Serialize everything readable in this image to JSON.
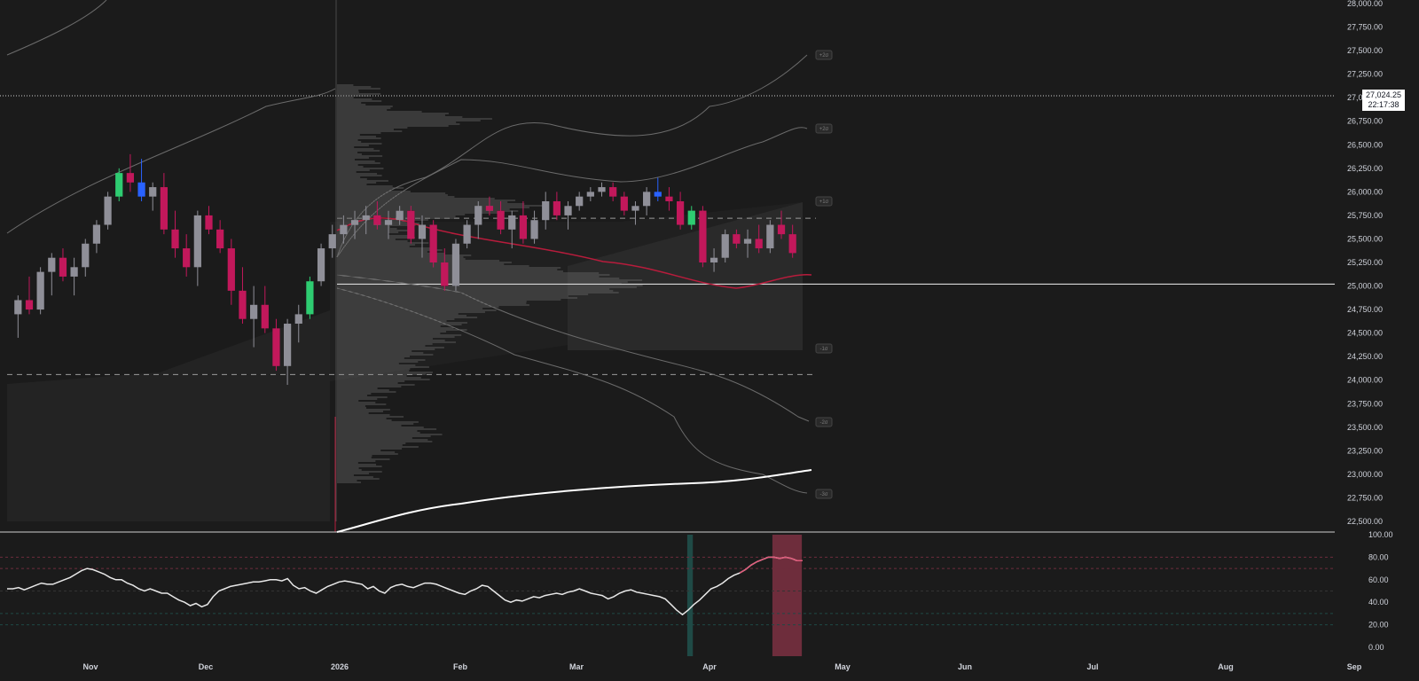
{
  "chart_data": [
    {
      "type": "candlestick",
      "title": "",
      "last_price": "27,024.25",
      "countdown": "22:17:38",
      "y_ticks": [
        "28,000.00",
        "27,750.00",
        "27,500.00",
        "27,250.00",
        "27,000.00",
        "26,750.00",
        "26,500.00",
        "26,250.00",
        "26,000.00",
        "25,750.00",
        "25,500.00",
        "25,250.00",
        "25,000.00",
        "24,750.00",
        "24,500.00",
        "24,250.00",
        "24,000.00",
        "23,750.00",
        "23,500.00",
        "23,250.00",
        "23,000.00",
        "22,750.00",
        "22,500.00"
      ],
      "ylim": [
        22500,
        28000
      ],
      "x_ticks": [
        "Nov",
        "Dec",
        "2026",
        "Feb",
        "Mar",
        "Apr",
        "May",
        "Jun",
        "Jul",
        "Aug",
        "Sep"
      ],
      "band_labels": [
        "+2σ",
        "+1σ",
        "-1σ",
        "-2σ",
        "-3σ"
      ],
      "horizontal_levels": [
        25020,
        25720,
        24060
      ],
      "colors": {
        "up": "#8f8f98",
        "down": "#c2185b",
        "highlight_up": "#2ecc71",
        "highlight_down": "#2962ff",
        "ma": "#b71c3c",
        "long_ma": "#ffffff",
        "volume_profile": "#9e9e9e"
      },
      "candles_ohlc": [
        [
          24700,
          24900,
          24450,
          24850
        ],
        [
          24850,
          25100,
          24700,
          24750
        ],
        [
          24750,
          25200,
          24700,
          25150
        ],
        [
          25150,
          25350,
          24900,
          25300
        ],
        [
          25300,
          25400,
          25050,
          25100
        ],
        [
          25100,
          25300,
          24900,
          25200
        ],
        [
          25200,
          25500,
          25100,
          25450
        ],
        [
          25450,
          25700,
          25350,
          25650
        ],
        [
          25650,
          26000,
          25600,
          25950
        ],
        [
          25950,
          26250,
          25900,
          26200
        ],
        [
          26200,
          26400,
          26000,
          26100
        ],
        [
          26100,
          26350,
          25900,
          25950
        ],
        [
          25950,
          26100,
          25800,
          26050
        ],
        [
          26050,
          26200,
          25550,
          25600
        ],
        [
          25600,
          25800,
          25300,
          25400
        ],
        [
          25400,
          25550,
          25100,
          25200
        ],
        [
          25200,
          25800,
          25000,
          25750
        ],
        [
          25750,
          25850,
          25550,
          25600
        ],
        [
          25600,
          25700,
          25350,
          25400
        ],
        [
          25400,
          25500,
          24800,
          24950
        ],
        [
          24950,
          25200,
          24600,
          24650
        ],
        [
          24650,
          25000,
          24350,
          24800
        ],
        [
          24800,
          25000,
          24500,
          24550
        ],
        [
          24550,
          24650,
          24100,
          24150
        ],
        [
          24150,
          24650,
          23950,
          24600
        ],
        [
          24600,
          24800,
          24400,
          24700
        ],
        [
          24700,
          25100,
          24650,
          25050
        ],
        [
          25050,
          25450,
          25000,
          25400
        ],
        [
          25400,
          25650,
          25300,
          25550
        ],
        [
          25550,
          25750,
          25450,
          25650
        ],
        [
          25650,
          25800,
          25500,
          25700
        ],
        [
          25700,
          25850,
          25550,
          25750
        ],
        [
          25750,
          25900,
          25600,
          25650
        ],
        [
          25650,
          25800,
          25500,
          25700
        ],
        [
          25700,
          25850,
          25650,
          25800
        ],
        [
          25800,
          25850,
          25450,
          25500
        ],
        [
          25500,
          25750,
          25300,
          25650
        ],
        [
          25650,
          25700,
          25200,
          25250
        ],
        [
          25250,
          25400,
          24950,
          25000
        ],
        [
          25000,
          25500,
          24950,
          25450
        ],
        [
          25450,
          25700,
          25400,
          25650
        ],
        [
          25650,
          25900,
          25500,
          25850
        ],
        [
          25850,
          25950,
          25750,
          25800
        ],
        [
          25800,
          25900,
          25550,
          25600
        ],
        [
          25600,
          25800,
          25400,
          25750
        ],
        [
          25750,
          25900,
          25450,
          25500
        ],
        [
          25500,
          25800,
          25450,
          25700
        ],
        [
          25700,
          26000,
          25600,
          25900
        ],
        [
          25900,
          26000,
          25700,
          25750
        ],
        [
          25750,
          25900,
          25600,
          25850
        ],
        [
          25850,
          26000,
          25800,
          25950
        ],
        [
          25950,
          26050,
          25900,
          26000
        ],
        [
          26000,
          26100,
          25950,
          26050
        ],
        [
          26050,
          26100,
          25900,
          25950
        ],
        [
          25950,
          26000,
          25750,
          25800
        ],
        [
          25800,
          25900,
          25650,
          25850
        ],
        [
          25850,
          26050,
          25750,
          26000
        ],
        [
          26000,
          26150,
          25900,
          25950
        ],
        [
          25950,
          26050,
          25800,
          25900
        ],
        [
          25900,
          26000,
          25600,
          25650
        ],
        [
          25650,
          25850,
          25600,
          25800
        ],
        [
          25800,
          25850,
          25200,
          25250
        ],
        [
          25250,
          25400,
          25150,
          25300
        ],
        [
          25300,
          25600,
          25250,
          25550
        ],
        [
          25550,
          25600,
          25400,
          25450
        ],
        [
          25450,
          25600,
          25300,
          25500
        ],
        [
          25500,
          25650,
          25350,
          25400
        ],
        [
          25400,
          25700,
          25350,
          25650
        ],
        [
          25650,
          25800,
          25500,
          25550
        ],
        [
          25550,
          25650,
          25300,
          25350
        ]
      ],
      "rsi": {
        "ylim": [
          0,
          100
        ],
        "y_ticks": [
          "100.00",
          "80.00",
          "60.00",
          "40.00",
          "20.00",
          "0.00"
        ],
        "levels": [
          80,
          70,
          50,
          30,
          20
        ],
        "values": [
          52,
          52,
          53,
          51,
          53,
          55,
          57,
          56,
          56,
          58,
          60,
          62,
          65,
          68,
          70,
          69,
          67,
          65,
          62,
          60,
          60,
          57,
          55,
          52,
          50,
          52,
          50,
          48,
          48,
          45,
          42,
          40,
          37,
          39,
          36,
          38,
          45,
          50,
          52,
          54,
          55,
          56,
          57,
          58,
          58,
          59,
          60,
          60,
          59,
          61,
          55,
          52,
          53,
          50,
          48,
          51,
          54,
          56,
          58,
          59,
          58,
          57,
          56,
          52,
          54,
          50,
          48,
          53,
          55,
          56,
          54,
          53,
          55,
          57,
          57,
          56,
          54,
          52,
          50,
          48,
          47,
          50,
          52,
          55,
          54,
          50,
          46,
          42,
          40,
          42,
          41,
          43,
          45,
          44,
          46,
          47,
          48,
          47,
          49,
          50,
          52,
          50,
          48,
          47,
          46,
          43,
          45,
          48,
          50,
          51,
          49,
          48,
          47,
          46,
          45,
          43,
          38,
          33,
          29,
          33,
          38,
          42,
          47,
          52,
          54,
          57,
          61,
          64,
          66,
          69,
          73,
          76,
          78,
          80,
          80,
          79,
          80,
          79,
          77,
          77
        ]
      },
      "rsi_highlight_zones": [
        [
          0.855,
          0.862,
          "#1f4a46"
        ],
        [
          0.962,
          0.999,
          "#6e2d3c"
        ]
      ]
    }
  ]
}
